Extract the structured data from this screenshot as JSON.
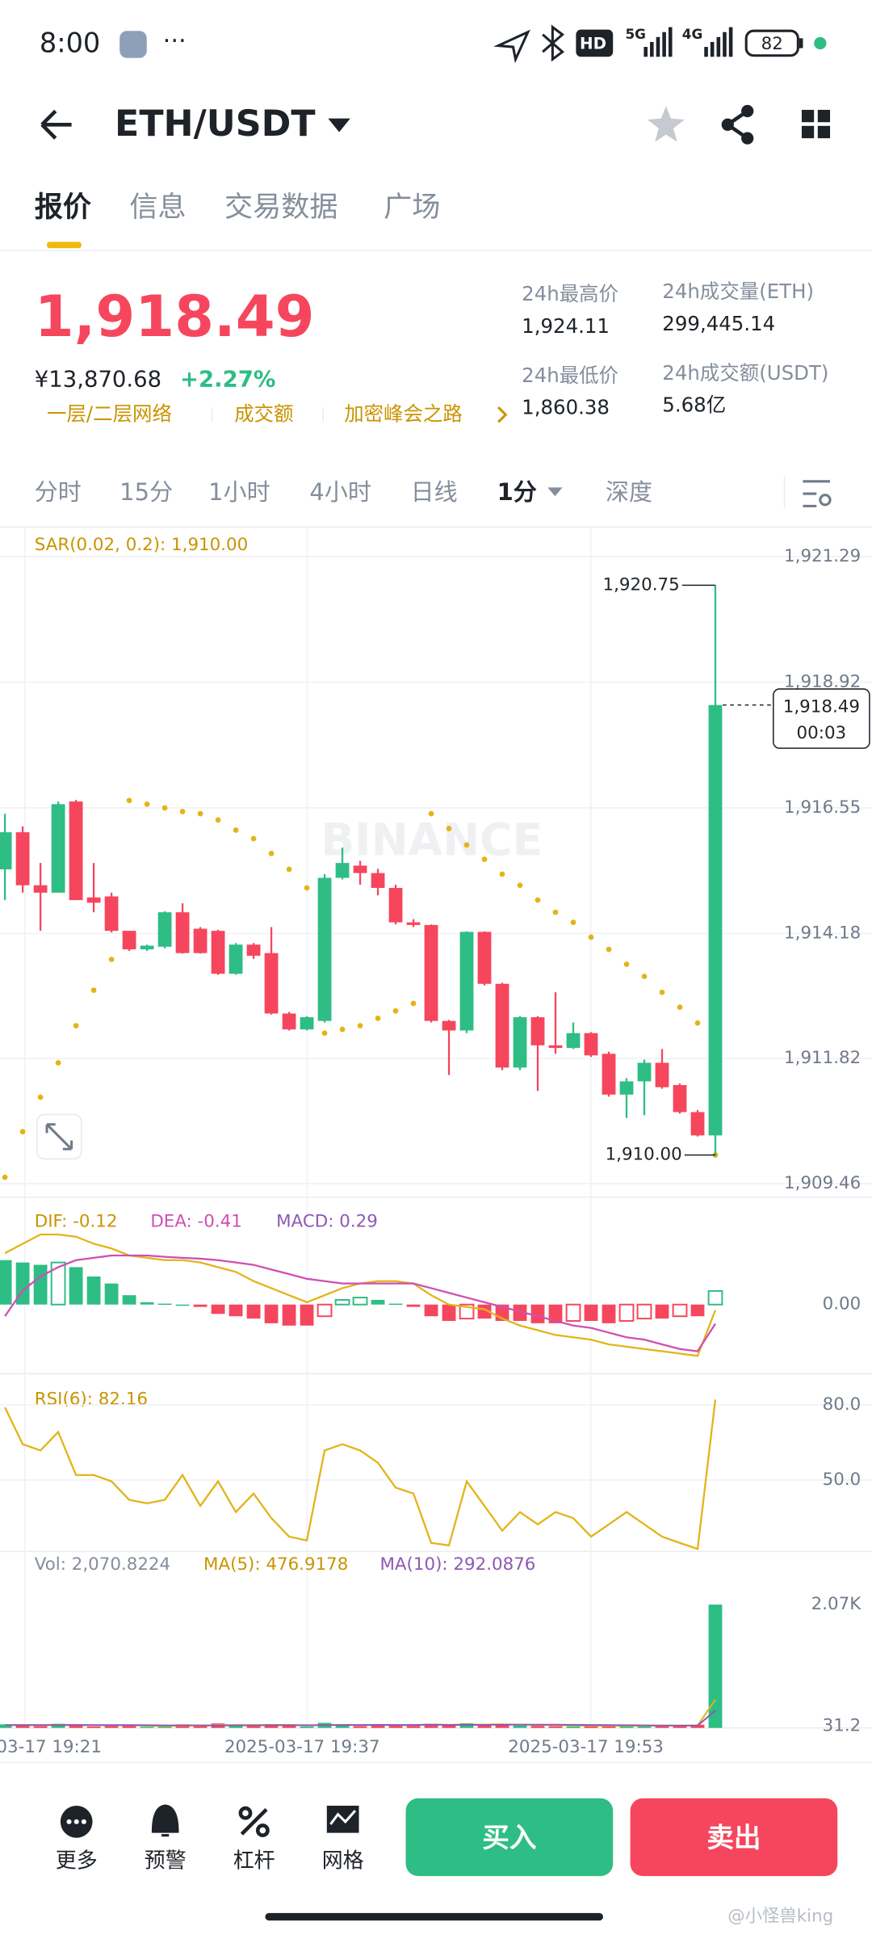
{
  "status_bar": {
    "time": "8:00",
    "hd": "HD",
    "net1": "5G",
    "net2": "4G",
    "battery": "82"
  },
  "header": {
    "pair": "ETH/USDT"
  },
  "tabs": [
    "报价",
    "信息",
    "交易数据",
    "广场"
  ],
  "ticker": {
    "price": "1,918.49",
    "cny": "¥13,870.68",
    "change": "+2.27%",
    "tags": [
      "一层/二层网络",
      "成交额",
      "加密峰会之路"
    ],
    "stats": [
      {
        "label": "24h最高价",
        "value": "1,924.11"
      },
      {
        "label": "24h成交量(ETH)",
        "value": "299,445.14"
      },
      {
        "label": "24h最低价",
        "value": "1,860.38"
      },
      {
        "label": "24h成交额(USDT)",
        "value": "5.68亿"
      }
    ]
  },
  "intervals": [
    "分时",
    "15分",
    "1小时",
    "4小时",
    "日线",
    "1分",
    "深度"
  ],
  "chart_data": {
    "type": "candlestick",
    "up_color": "#2ebd85",
    "down_color": "#f6465d",
    "sar_color": "#e2b419",
    "sar_label": "SAR(0.02, 0.2): 1,910.00",
    "watermark": "BINANCE",
    "ylim": [
      1909.46,
      1921.29
    ],
    "yticks": [
      {
        "value": 1921.29,
        "label": "1,921.29"
      },
      {
        "value": 1918.92,
        "label": "1,918.92"
      },
      {
        "value": 1916.55,
        "label": "1,916.55"
      },
      {
        "value": 1914.18,
        "label": "1,914.18"
      },
      {
        "value": 1911.82,
        "label": "1,911.82"
      },
      {
        "value": 1909.46,
        "label": "1,909.46"
      }
    ],
    "candles": [
      [
        1915.39,
        1916.44,
        1914.81,
        1916.09
      ],
      [
        1916.09,
        1916.2,
        1914.95,
        1915.09
      ],
      [
        1915.09,
        1915.51,
        1914.23,
        1914.95
      ],
      [
        1914.95,
        1916.67,
        1914.95,
        1916.62
      ],
      [
        1916.67,
        1916.7,
        1914.81,
        1914.81
      ],
      [
        1914.86,
        1915.51,
        1914.58,
        1914.76
      ],
      [
        1914.88,
        1914.95,
        1914.2,
        1914.23
      ],
      [
        1914.23,
        1914.23,
        1913.85,
        1913.88
      ],
      [
        1913.88,
        1913.97,
        1913.85,
        1913.95
      ],
      [
        1913.93,
        1914.6,
        1913.9,
        1914.58
      ],
      [
        1914.58,
        1914.75,
        1913.8,
        1913.81
      ],
      [
        1914.27,
        1914.3,
        1913.8,
        1913.81
      ],
      [
        1914.23,
        1914.25,
        1913.4,
        1913.42
      ],
      [
        1913.42,
        1914.0,
        1913.4,
        1913.97
      ],
      [
        1913.97,
        1914.0,
        1913.7,
        1913.76
      ],
      [
        1913.81,
        1914.3,
        1912.65,
        1912.67
      ],
      [
        1912.67,
        1912.7,
        1912.35,
        1912.37
      ],
      [
        1912.37,
        1912.62,
        1912.35,
        1912.6
      ],
      [
        1912.53,
        1915.3,
        1912.5,
        1915.23
      ],
      [
        1915.23,
        1915.8,
        1915.2,
        1915.51
      ],
      [
        1915.46,
        1915.55,
        1915.1,
        1915.32
      ],
      [
        1915.32,
        1915.4,
        1914.9,
        1915.04
      ],
      [
        1915.04,
        1915.1,
        1914.35,
        1914.39
      ],
      [
        1914.39,
        1914.45,
        1914.3,
        1914.34
      ],
      [
        1914.34,
        1914.35,
        1912.5,
        1912.53
      ],
      [
        1912.53,
        1912.55,
        1911.51,
        1912.35
      ],
      [
        1912.35,
        1914.22,
        1912.3,
        1914.21
      ],
      [
        1914.21,
        1914.22,
        1913.2,
        1913.23
      ],
      [
        1913.23,
        1913.25,
        1911.6,
        1911.65
      ],
      [
        1911.65,
        1912.62,
        1911.6,
        1912.6
      ],
      [
        1912.6,
        1912.62,
        1911.21,
        1912.07
      ],
      [
        1912.07,
        1913.07,
        1911.91,
        1912.02
      ],
      [
        1912.02,
        1912.5,
        1912.0,
        1912.3
      ],
      [
        1912.3,
        1912.32,
        1911.85,
        1911.88
      ],
      [
        1911.91,
        1911.95,
        1911.1,
        1911.14
      ],
      [
        1911.14,
        1911.45,
        1910.7,
        1911.39
      ],
      [
        1911.39,
        1911.8,
        1910.75,
        1911.74
      ],
      [
        1911.74,
        1912.0,
        1911.25,
        1911.28
      ],
      [
        1911.32,
        1911.35,
        1910.78,
        1910.81
      ],
      [
        1910.81,
        1910.85,
        1910.35,
        1910.37
      ],
      [
        1910.37,
        1920.75,
        1910.0,
        1918.49
      ]
    ],
    "sar": [
      1909.58,
      1910.44,
      1911.09,
      1911.74,
      1912.44,
      1913.11,
      1913.69,
      1916.69,
      1916.62,
      1916.55,
      1916.48,
      1916.44,
      1916.32,
      1916.13,
      1915.97,
      1915.69,
      1915.39,
      1915.04,
      1912.3,
      1912.37,
      1912.44,
      1912.58,
      1912.72,
      1912.86,
      1916.44,
      1916.16,
      1915.85,
      1915.58,
      1915.3,
      1915.09,
      1914.81,
      1914.58,
      1914.39,
      1914.11,
      1913.88,
      1913.6,
      1913.37,
      1913.07,
      1912.79,
      1912.49,
      1910.0
    ],
    "high_label": {
      "value": 1920.75,
      "label": "1,920.75"
    },
    "low_label": {
      "value": 1910.0,
      "label": "1,910.00"
    },
    "last_price": {
      "value": 1918.49,
      "label": "1,918.49"
    },
    "countdown": "00:03",
    "x_labels": [
      "03-17 19:21",
      "2025-03-17 19:37",
      "2025-03-17 19:53"
    ],
    "macd": {
      "dif_label": "DIF: -0.12",
      "dea_label": "DEA: -0.41",
      "macd_label": "MACD: 0.29",
      "dif_color": "#e2b419",
      "dea_color": "#cf4fb2",
      "macd_color": "#8e58b4",
      "ylim": [
        -1.4,
        1.9
      ],
      "yticks": [
        {
          "value": 0,
          "label": "0.00"
        }
      ],
      "dif": [
        1.1,
        1.3,
        1.5,
        1.5,
        1.45,
        1.3,
        1.2,
        1.05,
        1.0,
        0.95,
        0.95,
        0.9,
        0.8,
        0.7,
        0.5,
        0.35,
        0.2,
        0.05,
        0.2,
        0.35,
        0.45,
        0.5,
        0.5,
        0.45,
        0.2,
        0.0,
        -0.05,
        -0.1,
        -0.3,
        -0.45,
        -0.55,
        -0.65,
        -0.7,
        -0.75,
        -0.85,
        -0.9,
        -0.95,
        -1.0,
        -1.05,
        -1.1,
        -0.12
      ],
      "dea": [
        -0.25,
        0.3,
        0.6,
        0.8,
        0.95,
        1.0,
        1.05,
        1.05,
        1.05,
        1.02,
        1.0,
        0.98,
        0.95,
        0.9,
        0.85,
        0.75,
        0.65,
        0.55,
        0.5,
        0.45,
        0.45,
        0.45,
        0.45,
        0.45,
        0.35,
        0.25,
        0.15,
        0.05,
        -0.05,
        -0.15,
        -0.25,
        -0.35,
        -0.45,
        -0.5,
        -0.6,
        -0.7,
        -0.75,
        -0.85,
        -0.95,
        -1.0,
        -0.41
      ],
      "hist": [
        0.95,
        0.9,
        0.85,
        0.9,
        0.8,
        0.6,
        0.45,
        0.2,
        0.05,
        0.02,
        0.0,
        -0.05,
        -0.2,
        -0.25,
        -0.3,
        -0.4,
        -0.45,
        -0.45,
        -0.25,
        0.1,
        0.15,
        0.1,
        0.02,
        -0.05,
        -0.25,
        -0.35,
        -0.3,
        -0.3,
        -0.35,
        -0.35,
        -0.4,
        -0.4,
        -0.35,
        -0.35,
        -0.4,
        -0.35,
        -0.3,
        -0.3,
        -0.25,
        -0.25,
        0.29
      ]
    },
    "rsi": {
      "label": "RSI(6): 82.16",
      "color": "#e2b419",
      "ylim": [
        22,
        89
      ],
      "yticks": [
        {
          "value": 80,
          "label": "80.0"
        },
        {
          "value": 50,
          "label": "50.0"
        }
      ],
      "values": [
        79.0,
        64.3,
        61.8,
        69.2,
        52.0,
        52.0,
        49.5,
        42.1,
        40.7,
        42.1,
        52.0,
        39.7,
        49.5,
        37.2,
        44.6,
        34.8,
        27.4,
        25.9,
        61.8,
        64.3,
        61.8,
        56.9,
        47.0,
        44.6,
        24.9,
        23.9,
        49.5,
        39.7,
        29.8,
        37.2,
        32.3,
        37.2,
        34.8,
        27.4,
        32.3,
        37.2,
        32.3,
        27.4,
        24.9,
        22.5,
        82.16
      ]
    },
    "volume": {
      "vol_label": "Vol: 2,070.8224",
      "ma5_label": "MA(5): 476.9178",
      "ma10_label": "MA(10): 292.0876",
      "ma5_color": "#e2b419",
      "ma10_color": "#8e58b4",
      "ylim": [
        0,
        2300
      ],
      "yticks": [
        {
          "value": 2070,
          "label": "2.07K"
        },
        31.2
      ],
      "values": [
        60,
        45,
        30,
        70,
        55,
        25,
        40,
        35,
        20,
        45,
        60,
        40,
        75,
        50,
        30,
        65,
        40,
        25,
        85,
        60,
        30,
        40,
        55,
        35,
        70,
        45,
        80,
        50,
        60,
        40,
        35,
        30,
        25,
        45,
        50,
        30,
        35,
        40,
        45,
        55,
        2070.8224
      ],
      "ma5": [
        50,
        50,
        48,
        50,
        52,
        45,
        44,
        45,
        37,
        33,
        40,
        40,
        48,
        50,
        49,
        52,
        52,
        42,
        49,
        52,
        48,
        52,
        47,
        48,
        58,
        52,
        57,
        56,
        62,
        55,
        52,
        49,
        41,
        37,
        37,
        36,
        37,
        39,
        41,
        41,
        476.9178
      ],
      "ma10": [
        48,
        48,
        47,
        48,
        49,
        48,
        48,
        47,
        45,
        44,
        43,
        43,
        42,
        43,
        43,
        45,
        46,
        45,
        48,
        50,
        50,
        52,
        50,
        50,
        54,
        52,
        52,
        52,
        54,
        53,
        53,
        53,
        52,
        50,
        48,
        46,
        44,
        42,
        40,
        40,
        292.0876
      ]
    }
  },
  "bottom_bar": {
    "items": [
      "更多",
      "预警",
      "杠杆",
      "网格"
    ],
    "buy": "买入",
    "sell": "卖出"
  },
  "watermark": "@小怪兽king"
}
